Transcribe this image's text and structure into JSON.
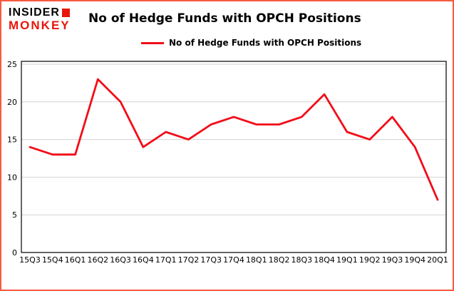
{
  "header": {
    "brand_line1": "INSIDER",
    "brand_line2": "MONKEY",
    "title": "No of Hedge Funds with OPCH Positions"
  },
  "legend": {
    "label": "No of Hedge Funds with OPCH Positions"
  },
  "colors": {
    "line": "#f20d18",
    "border": "#fa5a40",
    "grid": "#d3d3d3",
    "axis": "#000000",
    "brand_red": "#e8160c"
  },
  "chart_data": {
    "type": "line",
    "title": "No of Hedge Funds with OPCH Positions",
    "categories": [
      "15Q3",
      "15Q4",
      "16Q1",
      "16Q2",
      "16Q3",
      "16Q4",
      "17Q1",
      "17Q2",
      "17Q3",
      "17Q4",
      "18Q1",
      "18Q2",
      "18Q3",
      "18Q4",
      "19Q1",
      "19Q2",
      "19Q3",
      "19Q4",
      "20Q1"
    ],
    "values": [
      14,
      13,
      13,
      23,
      20,
      14,
      16,
      15,
      17,
      18,
      17,
      17,
      18,
      21,
      16,
      15,
      18,
      14,
      7
    ],
    "yticks": [
      0,
      5,
      10,
      15,
      20,
      25
    ],
    "ylim": [
      0,
      25
    ],
    "xlabel": "",
    "ylabel": "",
    "grid": true,
    "legend_position": "top-left",
    "series_color": "#f20d18"
  }
}
